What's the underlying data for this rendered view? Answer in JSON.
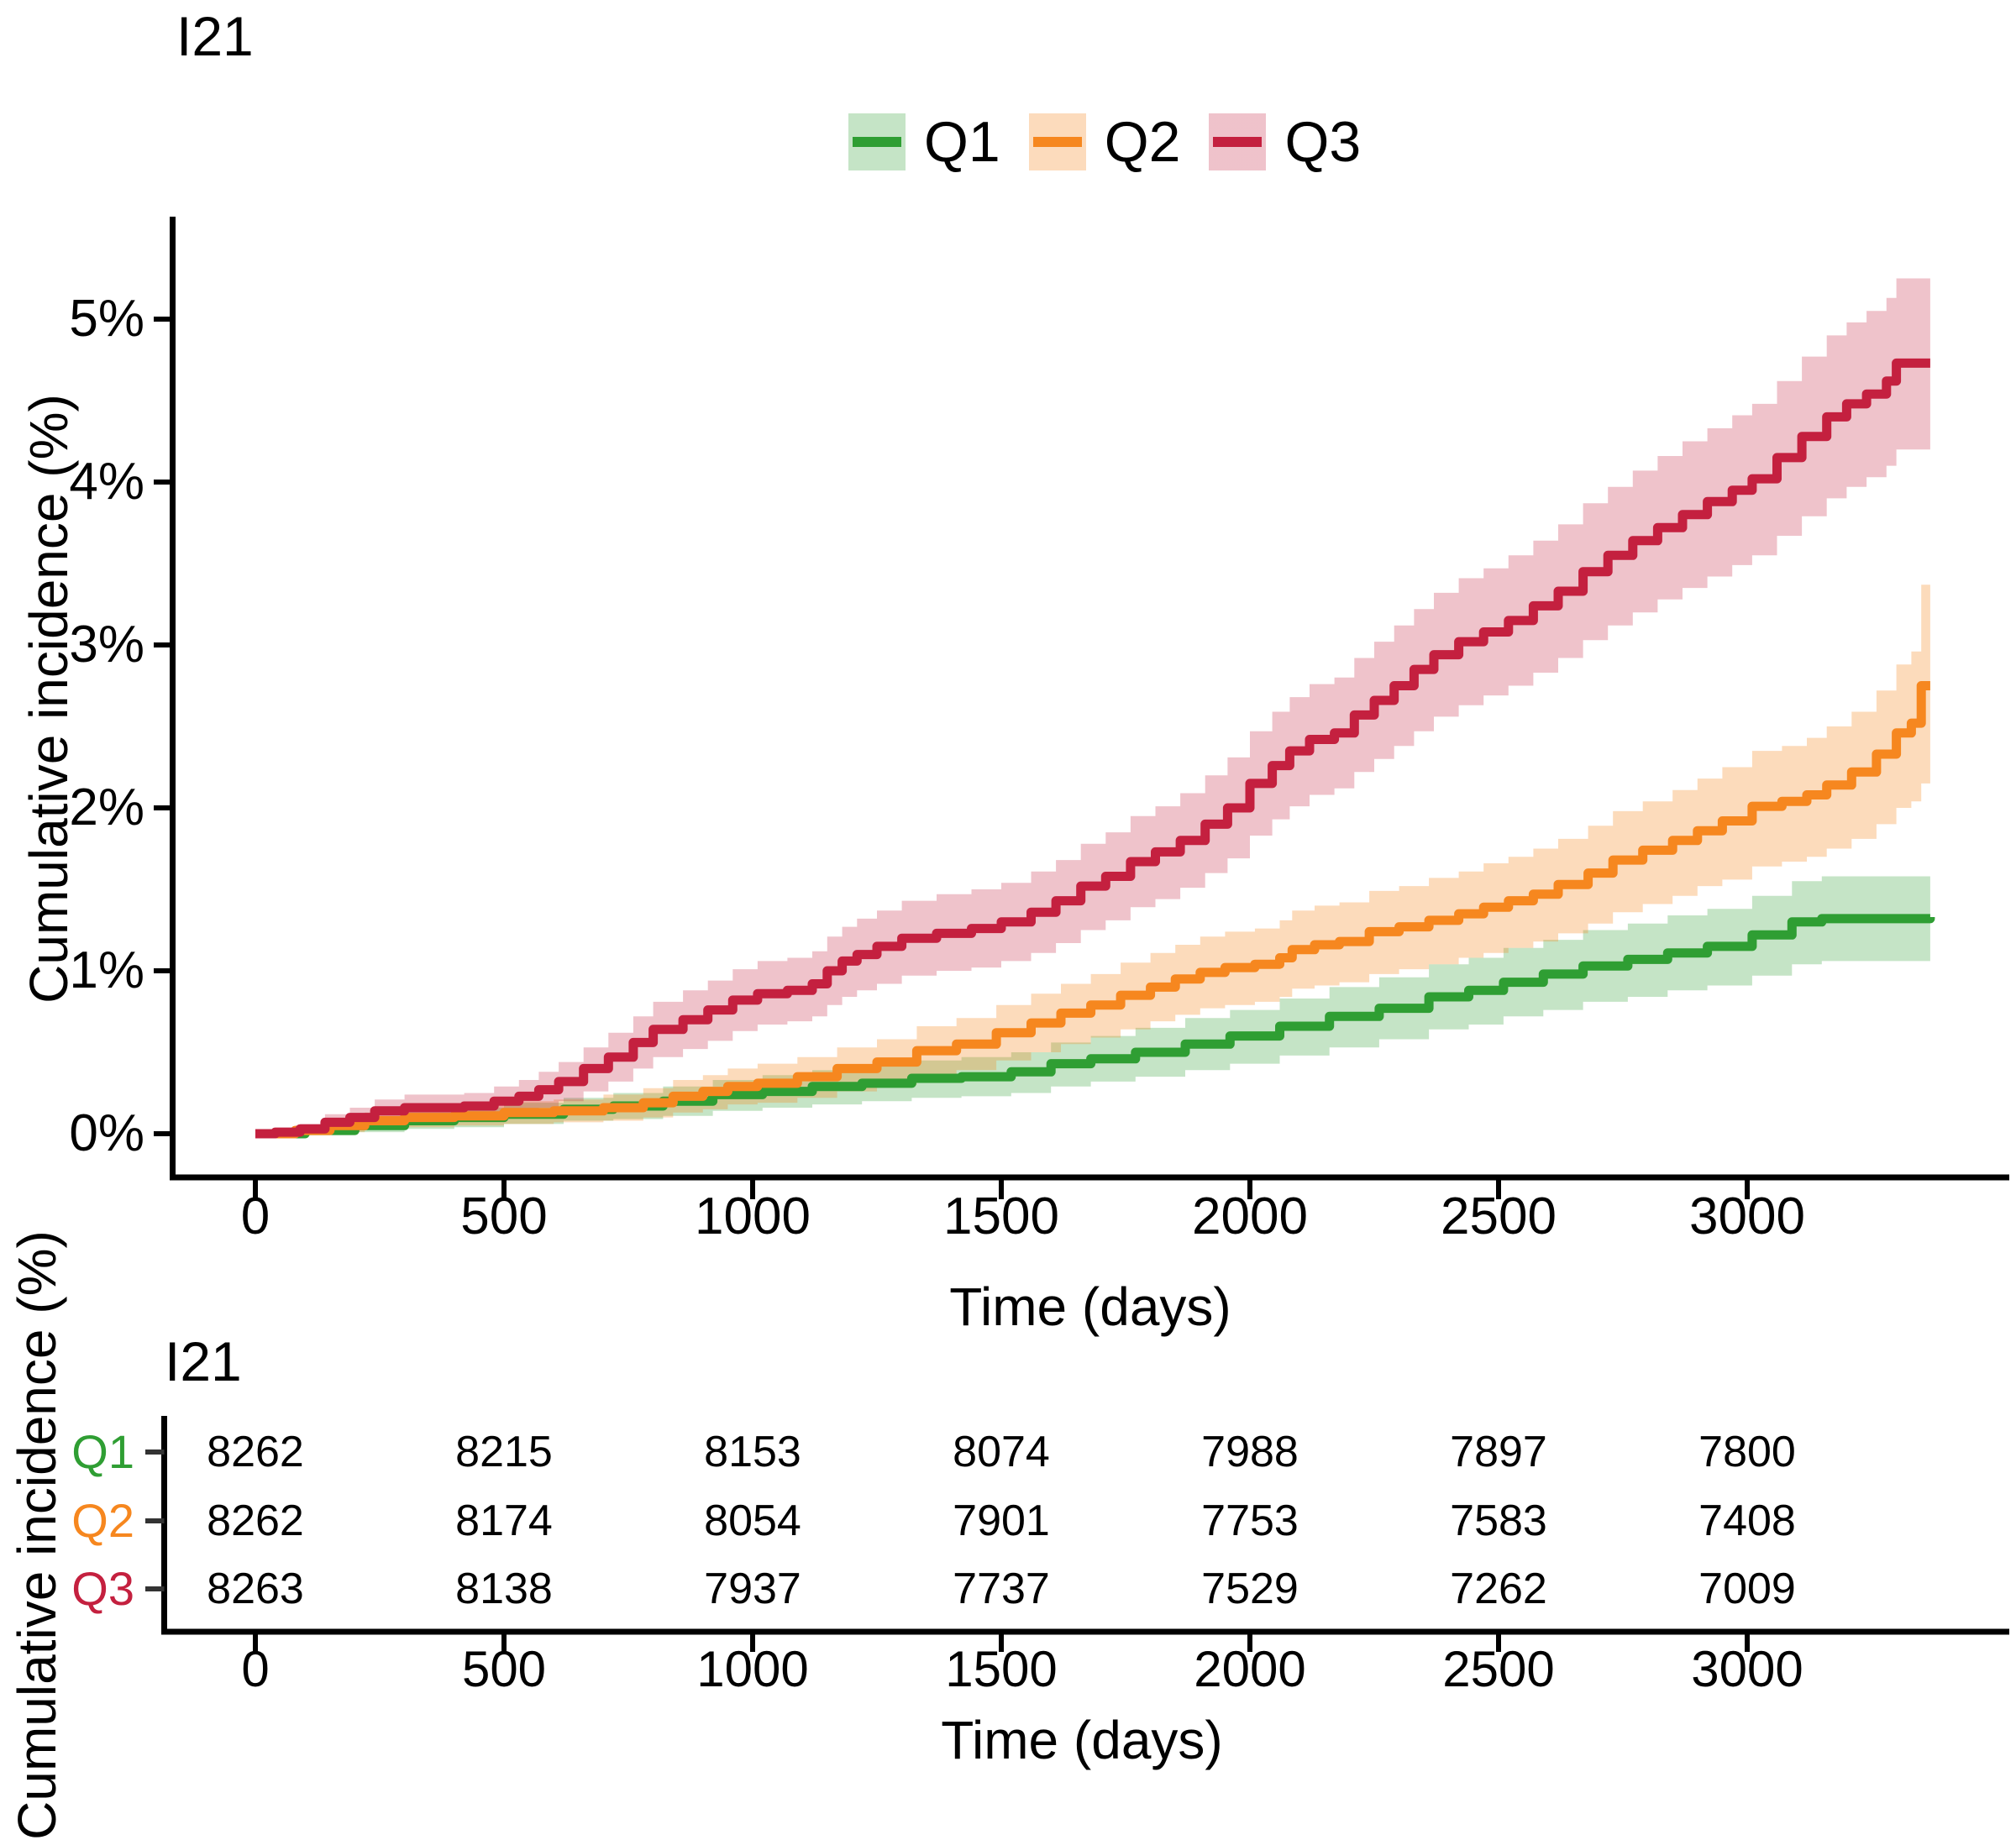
{
  "chart_data": [
    {
      "type": "line",
      "subtype": "step-function cumulative incidence curves with 95% CI bands",
      "title": "I21",
      "xlabel": "Time (days)",
      "ylabel": "Cumulative incidence (%)",
      "xlim": [
        0,
        3520
      ],
      "ylim": [
        0,
        5.4
      ],
      "grid": "off",
      "legend_position": "top center",
      "x_ticks": [
        0,
        500,
        1000,
        1500,
        2000,
        2500,
        3000
      ],
      "y_ticks": [
        {
          "v": 0,
          "label": "0%"
        },
        {
          "v": 1,
          "label": "1%"
        },
        {
          "v": 2,
          "label": "2%"
        },
        {
          "v": 3,
          "label": "3%"
        },
        {
          "v": 4,
          "label": "4%"
        },
        {
          "v": 5,
          "label": "5%"
        }
      ],
      "series": [
        {
          "name": "Q1",
          "line_color": "#2f9e33",
          "band_color": "#2f9e33",
          "band_opacity": 0.28,
          "points": [
            [
              0,
              0,
              0,
              0
            ],
            [
              100,
              0.02,
              0,
              0.05
            ],
            [
              200,
              0.05,
              0.01,
              0.09
            ],
            [
              300,
              0.08,
              0.03,
              0.13
            ],
            [
              400,
              0.1,
              0.04,
              0.16
            ],
            [
              500,
              0.12,
              0.06,
              0.19
            ],
            [
              620,
              0.15,
              0.08,
              0.22
            ],
            [
              720,
              0.17,
              0.09,
              0.25
            ],
            [
              820,
              0.2,
              0.11,
              0.29
            ],
            [
              920,
              0.24,
              0.14,
              0.33
            ],
            [
              1020,
              0.26,
              0.16,
              0.36
            ],
            [
              1120,
              0.29,
              0.18,
              0.39
            ],
            [
              1220,
              0.31,
              0.2,
              0.42
            ],
            [
              1320,
              0.34,
              0.22,
              0.45
            ],
            [
              1420,
              0.35,
              0.23,
              0.47
            ],
            [
              1520,
              0.38,
              0.25,
              0.5
            ],
            [
              1600,
              0.43,
              0.29,
              0.56
            ],
            [
              1680,
              0.46,
              0.32,
              0.6
            ],
            [
              1770,
              0.5,
              0.35,
              0.65
            ],
            [
              1870,
              0.55,
              0.39,
              0.71
            ],
            [
              1960,
              0.6,
              0.43,
              0.76
            ],
            [
              2060,
              0.66,
              0.48,
              0.83
            ],
            [
              2160,
              0.72,
              0.53,
              0.9
            ],
            [
              2260,
              0.77,
              0.58,
              0.96
            ],
            [
              2360,
              0.84,
              0.64,
              1.04
            ],
            [
              2440,
              0.88,
              0.67,
              1.08
            ],
            [
              2510,
              0.93,
              0.72,
              1.14
            ],
            [
              2590,
              0.98,
              0.76,
              1.19
            ],
            [
              2670,
              1.03,
              0.81,
              1.25
            ],
            [
              2760,
              1.07,
              0.84,
              1.29
            ],
            [
              2840,
              1.11,
              0.88,
              1.34
            ],
            [
              2920,
              1.15,
              0.91,
              1.38
            ],
            [
              3010,
              1.22,
              0.97,
              1.46
            ],
            [
              3090,
              1.3,
              1.04,
              1.55
            ],
            [
              3150,
              1.32,
              1.06,
              1.58
            ],
            [
              3368,
              1.33,
              1.07,
              1.58
            ]
          ]
        },
        {
          "name": "Q2",
          "line_color": "#f6871f",
          "band_color": "#f6871f",
          "band_opacity": 0.3,
          "points": [
            [
              0,
              0,
              0,
              0
            ],
            [
              80,
              0.02,
              0,
              0.05
            ],
            [
              150,
              0.05,
              0.01,
              0.09
            ],
            [
              220,
              0.08,
              0.03,
              0.13
            ],
            [
              300,
              0.1,
              0.04,
              0.16
            ],
            [
              400,
              0.11,
              0.05,
              0.17
            ],
            [
              500,
              0.13,
              0.06,
              0.2
            ],
            [
              600,
              0.14,
              0.07,
              0.21
            ],
            [
              700,
              0.16,
              0.08,
              0.24
            ],
            [
              780,
              0.19,
              0.1,
              0.28
            ],
            [
              840,
              0.23,
              0.13,
              0.33
            ],
            [
              900,
              0.26,
              0.15,
              0.36
            ],
            [
              950,
              0.29,
              0.18,
              0.4
            ],
            [
              1010,
              0.31,
              0.19,
              0.43
            ],
            [
              1090,
              0.35,
              0.22,
              0.47
            ],
            [
              1170,
              0.4,
              0.26,
              0.53
            ],
            [
              1250,
              0.44,
              0.3,
              0.58
            ],
            [
              1330,
              0.51,
              0.35,
              0.66
            ],
            [
              1410,
              0.55,
              0.39,
              0.71
            ],
            [
              1490,
              0.62,
              0.45,
              0.79
            ],
            [
              1560,
              0.68,
              0.5,
              0.86
            ],
            [
              1620,
              0.74,
              0.55,
              0.92
            ],
            [
              1680,
              0.79,
              0.59,
              0.98
            ],
            [
              1740,
              0.85,
              0.64,
              1.05
            ],
            [
              1800,
              0.9,
              0.69,
              1.11
            ],
            [
              1850,
              0.95,
              0.73,
              1.16
            ],
            [
              1900,
              0.99,
              0.77,
              1.21
            ],
            [
              1950,
              1.02,
              0.79,
              1.24
            ],
            [
              2010,
              1.04,
              0.81,
              1.26
            ],
            [
              2060,
              1.08,
              0.84,
              1.31
            ],
            [
              2085,
              1.13,
              0.89,
              1.37
            ],
            [
              2130,
              1.16,
              0.91,
              1.4
            ],
            [
              2180,
              1.18,
              0.93,
              1.42
            ],
            [
              2240,
              1.24,
              0.98,
              1.49
            ],
            [
              2300,
              1.27,
              1.01,
              1.52
            ],
            [
              2360,
              1.31,
              1.04,
              1.57
            ],
            [
              2420,
              1.35,
              1.08,
              1.61
            ],
            [
              2470,
              1.39,
              1.11,
              1.66
            ],
            [
              2520,
              1.43,
              1.14,
              1.7
            ],
            [
              2570,
              1.47,
              1.18,
              1.75
            ],
            [
              2620,
              1.53,
              1.23,
              1.81
            ],
            [
              2680,
              1.6,
              1.29,
              1.89
            ],
            [
              2730,
              1.68,
              1.36,
              1.98
            ],
            [
              2790,
              1.74,
              1.41,
              2.04
            ],
            [
              2850,
              1.8,
              1.46,
              2.11
            ],
            [
              2900,
              1.86,
              1.52,
              2.18
            ],
            [
              2950,
              1.92,
              1.56,
              2.25
            ],
            [
              3010,
              2.01,
              1.64,
              2.35
            ],
            [
              3070,
              2.04,
              1.67,
              2.38
            ],
            [
              3120,
              2.08,
              1.7,
              2.43
            ],
            [
              3160,
              2.14,
              1.75,
              2.5
            ],
            [
              3210,
              2.22,
              1.81,
              2.59
            ],
            [
              3260,
              2.33,
              1.9,
              2.72
            ],
            [
              3300,
              2.46,
              2.0,
              2.88
            ],
            [
              3330,
              2.52,
              2.04,
              2.96
            ],
            [
              3350,
              2.75,
              2.15,
              3.37
            ],
            [
              3368,
              2.75,
              2.15,
              3.37
            ]
          ]
        },
        {
          "name": "Q3",
          "line_color": "#c4203f",
          "band_color": "#c4203f",
          "band_opacity": 0.27,
          "points": [
            [
              0,
              0,
              0,
              0
            ],
            [
              40,
              0.01,
              0,
              0.03
            ],
            [
              90,
              0.03,
              0.005,
              0.06
            ],
            [
              140,
              0.07,
              0.02,
              0.12
            ],
            [
              190,
              0.1,
              0.04,
              0.16
            ],
            [
              240,
              0.14,
              0.07,
              0.21
            ],
            [
              300,
              0.16,
              0.08,
              0.24
            ],
            [
              420,
              0.17,
              0.09,
              0.25
            ],
            [
              480,
              0.2,
              0.11,
              0.29
            ],
            [
              530,
              0.23,
              0.13,
              0.33
            ],
            [
              570,
              0.27,
              0.16,
              0.38
            ],
            [
              610,
              0.32,
              0.2,
              0.44
            ],
            [
              660,
              0.4,
              0.26,
              0.53
            ],
            [
              710,
              0.47,
              0.32,
              0.62
            ],
            [
              760,
              0.56,
              0.4,
              0.72
            ],
            [
              800,
              0.64,
              0.47,
              0.81
            ],
            [
              860,
              0.7,
              0.52,
              0.88
            ],
            [
              910,
              0.76,
              0.57,
              0.94
            ],
            [
              960,
              0.82,
              0.63,
              1.01
            ],
            [
              1010,
              0.86,
              0.67,
              1.06
            ],
            [
              1070,
              0.88,
              0.69,
              1.08
            ],
            [
              1120,
              0.92,
              0.72,
              1.12
            ],
            [
              1150,
              1.0,
              0.79,
              1.21
            ],
            [
              1180,
              1.06,
              0.84,
              1.27
            ],
            [
              1210,
              1.1,
              0.88,
              1.32
            ],
            [
              1250,
              1.15,
              0.92,
              1.37
            ],
            [
              1300,
              1.2,
              0.97,
              1.43
            ],
            [
              1370,
              1.23,
              1.0,
              1.47
            ],
            [
              1440,
              1.26,
              1.02,
              1.5
            ],
            [
              1500,
              1.3,
              1.06,
              1.54
            ],
            [
              1560,
              1.36,
              1.11,
              1.61
            ],
            [
              1610,
              1.43,
              1.17,
              1.68
            ],
            [
              1660,
              1.52,
              1.25,
              1.78
            ],
            [
              1710,
              1.58,
              1.31,
              1.85
            ],
            [
              1760,
              1.67,
              1.39,
              1.95
            ],
            [
              1810,
              1.73,
              1.44,
              2.01
            ],
            [
              1860,
              1.8,
              1.51,
              2.09
            ],
            [
              1910,
              1.9,
              1.6,
              2.2
            ],
            [
              1955,
              2.0,
              1.69,
              2.31
            ],
            [
              2000,
              2.15,
              1.83,
              2.47
            ],
            [
              2045,
              2.26,
              1.93,
              2.59
            ],
            [
              2080,
              2.35,
              2.01,
              2.68
            ],
            [
              2120,
              2.42,
              2.08,
              2.76
            ],
            [
              2170,
              2.46,
              2.12,
              2.8
            ],
            [
              2210,
              2.57,
              2.22,
              2.92
            ],
            [
              2250,
              2.66,
              2.3,
              3.02
            ],
            [
              2290,
              2.75,
              2.38,
              3.12
            ],
            [
              2330,
              2.85,
              2.47,
              3.22
            ],
            [
              2370,
              2.94,
              2.56,
              3.32
            ],
            [
              2420,
              3.02,
              2.63,
              3.41
            ],
            [
              2470,
              3.08,
              2.69,
              3.47
            ],
            [
              2520,
              3.15,
              2.75,
              3.55
            ],
            [
              2570,
              3.24,
              2.83,
              3.64
            ],
            [
              2620,
              3.33,
              2.92,
              3.74
            ],
            [
              2670,
              3.45,
              3.03,
              3.87
            ],
            [
              2720,
              3.55,
              3.12,
              3.97
            ],
            [
              2770,
              3.64,
              3.2,
              4.07
            ],
            [
              2820,
              3.72,
              3.28,
              4.16
            ],
            [
              2870,
              3.8,
              3.35,
              4.25
            ],
            [
              2920,
              3.88,
              3.42,
              4.33
            ],
            [
              2970,
              3.95,
              3.49,
              4.41
            ],
            [
              3010,
              4.02,
              3.55,
              4.48
            ],
            [
              3060,
              4.15,
              3.67,
              4.62
            ],
            [
              3110,
              4.28,
              3.79,
              4.77
            ],
            [
              3160,
              4.4,
              3.9,
              4.9
            ],
            [
              3200,
              4.48,
              3.97,
              4.98
            ],
            [
              3240,
              4.54,
              4.03,
              5.05
            ],
            [
              3280,
              4.62,
              4.1,
              5.13
            ],
            [
              3300,
              4.73,
              4.2,
              5.25
            ],
            [
              3368,
              4.73,
              4.2,
              5.25
            ]
          ]
        }
      ]
    },
    {
      "type": "table",
      "title": "I21",
      "xlabel": "Time (days)",
      "ylabel": "Cumulative incidence (%)",
      "description": "numbers at risk",
      "x_ticks": [
        0,
        500,
        1000,
        1500,
        2000,
        2500,
        3000
      ],
      "rows": [
        {
          "label": "Q1",
          "color": "#2f9e33",
          "values": [
            8262,
            8215,
            8153,
            8074,
            7988,
            7897,
            7800
          ]
        },
        {
          "label": "Q2",
          "color": "#f6871f",
          "values": [
            8262,
            8174,
            8054,
            7901,
            7753,
            7583,
            7408
          ]
        },
        {
          "label": "Q3",
          "color": "#c4203f",
          "values": [
            8263,
            8138,
            7937,
            7737,
            7529,
            7262,
            7009
          ]
        }
      ]
    }
  ]
}
